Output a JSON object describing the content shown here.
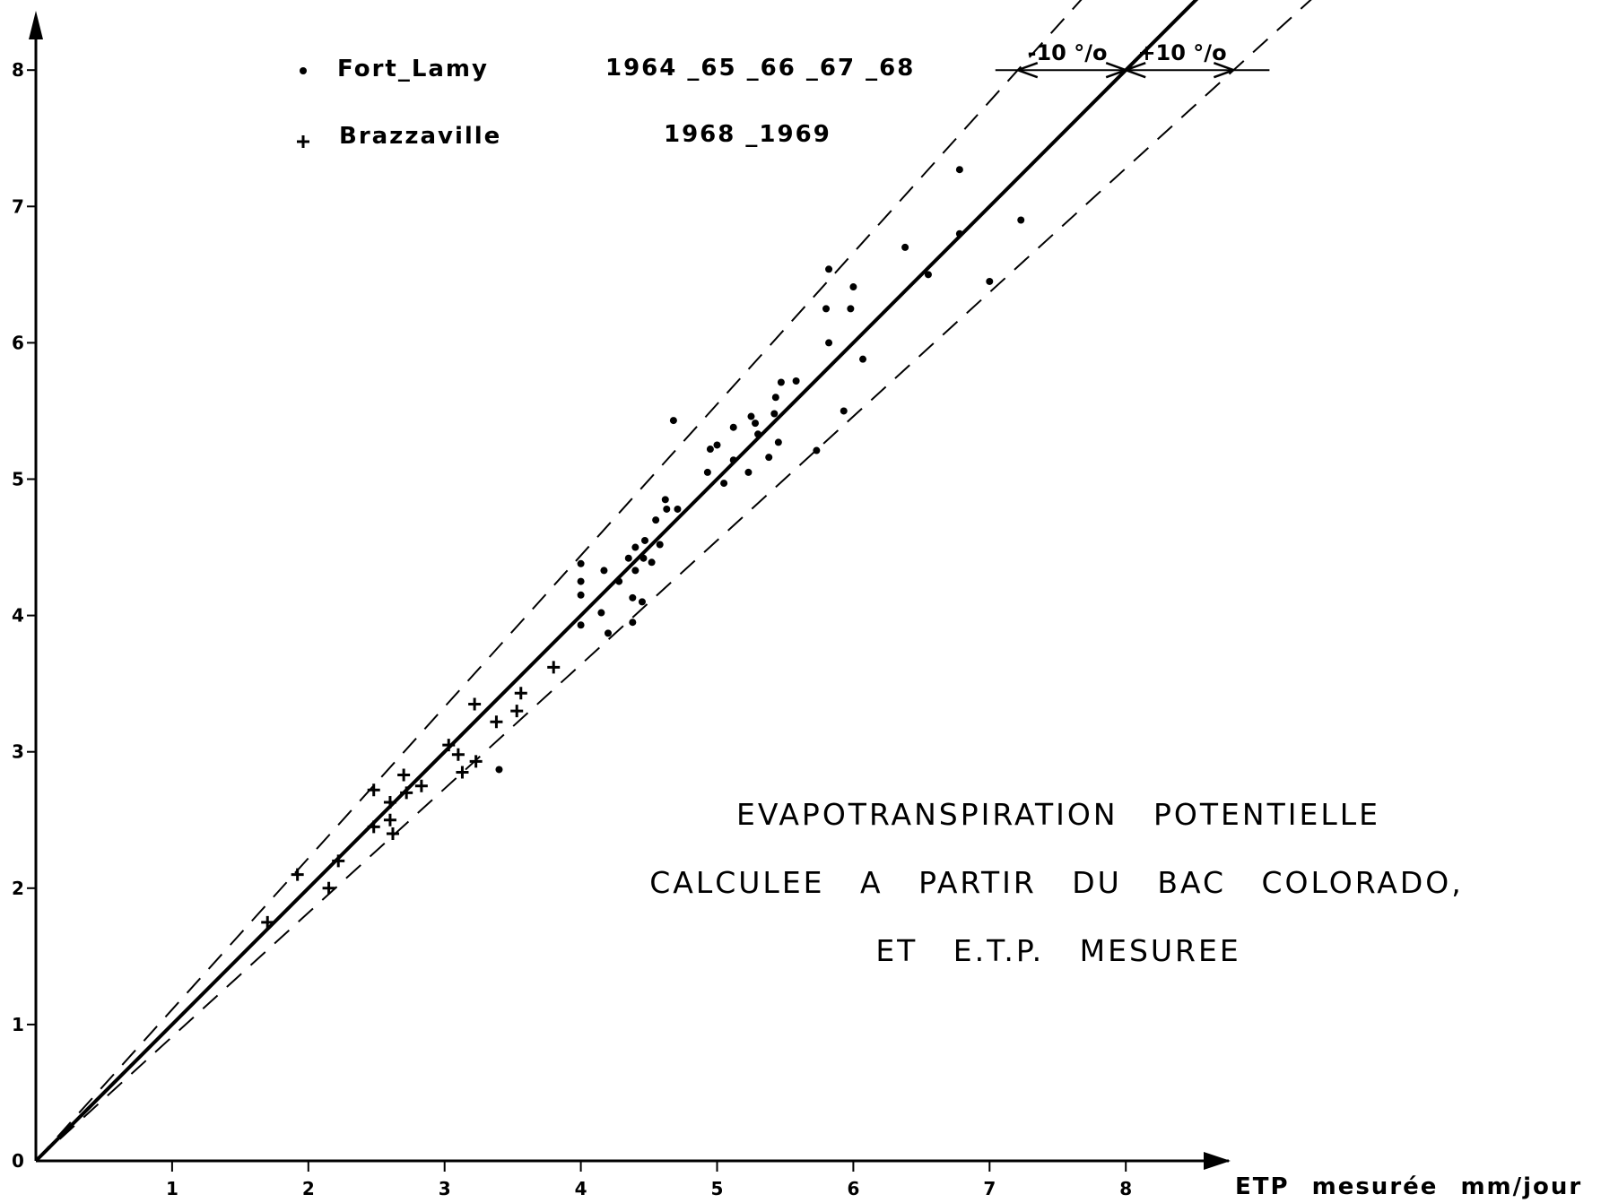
{
  "chart_data": {
    "type": "scatter",
    "title": [
      "EVAPOTRANSPIRATION  POTENTIELLE",
      "CALCULEE  A  PARTIR  DU  BAC  COLORADO,",
      "ET  E.T.P.  MESUREE"
    ],
    "xlabel": "ETP mesurée  mm/jour",
    "ylabel": "",
    "xlim": [
      0,
      8.7
    ],
    "ylim": [
      0,
      8.3
    ],
    "x_ticks": [
      "1",
      "2",
      "3",
      "4",
      "5",
      "6",
      "7",
      "8"
    ],
    "y_ticks": [
      "0",
      "1",
      "2",
      "3",
      "4",
      "5",
      "6",
      "7",
      "8"
    ],
    "grid": false,
    "legend_position": "top-left",
    "series": [
      {
        "name": "Fort_Lamy",
        "years": "1964 _65 _66 _67 _68",
        "marker": "dot",
        "points": [
          [
            3.4,
            2.87
          ],
          [
            4.0,
            3.93
          ],
          [
            4.0,
            4.15
          ],
          [
            4.0,
            4.25
          ],
          [
            4.0,
            4.38
          ],
          [
            4.15,
            4.02
          ],
          [
            4.17,
            4.33
          ],
          [
            4.2,
            3.87
          ],
          [
            4.28,
            4.25
          ],
          [
            4.35,
            4.42
          ],
          [
            4.38,
            3.95
          ],
          [
            4.38,
            4.13
          ],
          [
            4.4,
            4.33
          ],
          [
            4.4,
            4.5
          ],
          [
            4.45,
            4.1
          ],
          [
            4.46,
            4.42
          ],
          [
            4.47,
            4.55
          ],
          [
            4.52,
            4.39
          ],
          [
            4.55,
            4.7
          ],
          [
            4.58,
            4.52
          ],
          [
            4.62,
            4.85
          ],
          [
            4.63,
            4.78
          ],
          [
            4.68,
            5.43
          ],
          [
            4.71,
            4.78
          ],
          [
            4.93,
            5.05
          ],
          [
            4.95,
            5.22
          ],
          [
            5.0,
            5.25
          ],
          [
            5.05,
            4.97
          ],
          [
            5.12,
            5.14
          ],
          [
            5.12,
            5.38
          ],
          [
            5.23,
            5.05
          ],
          [
            5.25,
            5.46
          ],
          [
            5.28,
            5.41
          ],
          [
            5.3,
            5.33
          ],
          [
            5.38,
            5.16
          ],
          [
            5.42,
            5.48
          ],
          [
            5.43,
            5.6
          ],
          [
            5.45,
            5.27
          ],
          [
            5.47,
            5.71
          ],
          [
            5.58,
            5.72
          ],
          [
            5.73,
            5.21
          ],
          [
            5.8,
            6.25
          ],
          [
            5.82,
            6.0
          ],
          [
            5.93,
            5.5
          ],
          [
            5.98,
            6.25
          ],
          [
            6.0,
            6.41
          ],
          [
            6.07,
            5.88
          ],
          [
            6.38,
            6.7
          ],
          [
            6.55,
            6.5
          ],
          [
            6.78,
            6.8
          ],
          [
            6.78,
            7.27
          ],
          [
            7.0,
            6.45
          ],
          [
            7.23,
            6.9
          ],
          [
            5.82,
            6.54
          ]
        ]
      },
      {
        "name": "Brazzaville",
        "years": "1968 _1969",
        "marker": "plus",
        "points": [
          [
            1.7,
            1.75
          ],
          [
            1.92,
            2.1
          ],
          [
            2.15,
            2.0
          ],
          [
            2.22,
            2.2
          ],
          [
            2.48,
            2.72
          ],
          [
            2.48,
            2.45
          ],
          [
            2.6,
            2.63
          ],
          [
            2.6,
            2.5
          ],
          [
            2.62,
            2.4
          ],
          [
            2.7,
            2.83
          ],
          [
            2.72,
            2.7
          ],
          [
            2.83,
            2.75
          ],
          [
            3.03,
            3.05
          ],
          [
            3.1,
            2.98
          ],
          [
            3.13,
            2.85
          ],
          [
            3.22,
            3.35
          ],
          [
            3.23,
            2.93
          ],
          [
            3.38,
            3.22
          ],
          [
            3.53,
            3.3
          ],
          [
            3.56,
            3.43
          ],
          [
            3.8,
            3.62
          ]
        ]
      }
    ],
    "reference_lines": [
      {
        "name": "y = x",
        "style": "solid",
        "slope": 1.0
      },
      {
        "name": "-10%",
        "style": "dashed",
        "slope": 1.11
      },
      {
        "name": "+10%",
        "style": "dashed",
        "slope": 0.91
      }
    ],
    "annotations": {
      "minus_label": "-10 °/o",
      "plus_label": "+10 °/o",
      "at_y": 8
    }
  }
}
